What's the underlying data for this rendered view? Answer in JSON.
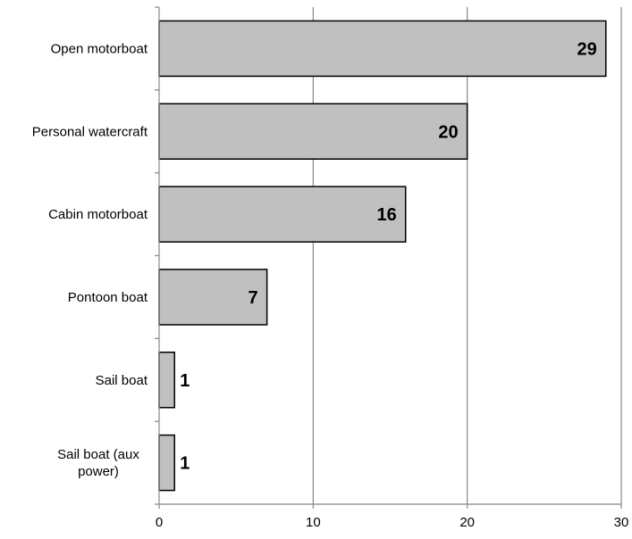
{
  "chart_data": {
    "type": "bar",
    "orientation": "horizontal",
    "title": "",
    "xlabel": "",
    "ylabel": "",
    "categories": [
      "Open motorboat",
      "Personal watercraft",
      "Cabin motorboat",
      "Pontoon boat",
      "Sail boat",
      "Sail boat (aux power)"
    ],
    "category_lines": [
      [
        "Open motorboat"
      ],
      [
        "Personal watercraft"
      ],
      [
        "Cabin motorboat"
      ],
      [
        "Pontoon boat"
      ],
      [
        "Sail boat"
      ],
      [
        "Sail boat (aux",
        "power)"
      ]
    ],
    "values": [
      29,
      20,
      16,
      7,
      1,
      1
    ],
    "data_labels": [
      "29",
      "20",
      "16",
      "7",
      "1",
      "1"
    ],
    "xlim": [
      0,
      30
    ],
    "x_ticks": [
      0,
      10,
      20,
      30
    ],
    "x_tick_labels": [
      "0",
      "10",
      "20",
      "30"
    ],
    "grid": "vertical",
    "legend": "none",
    "colors": {
      "bar_fill": "#c0c0c0",
      "bar_stroke": "#000000",
      "grid": "#888888",
      "axis": "#888888",
      "text": "#000000"
    }
  }
}
